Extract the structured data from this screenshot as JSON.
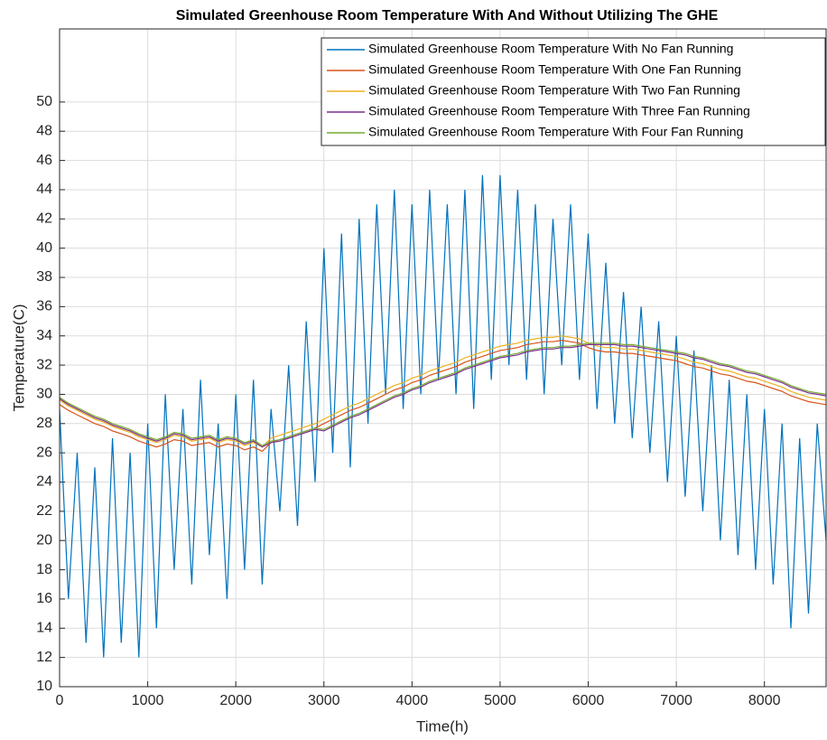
{
  "chart_data": {
    "type": "line",
    "title": "Simulated Greenhouse Room Temperature With And Without Utilizing The GHE",
    "x_label": "Time(h)",
    "y_label": "Temperature(C)",
    "xlim": [
      0,
      8700
    ],
    "ylim": [
      10,
      55
    ],
    "xticks": [
      0,
      1000,
      2000,
      3000,
      4000,
      5000,
      6000,
      7000,
      8000
    ],
    "yticks": [
      10,
      12,
      14,
      16,
      18,
      20,
      22,
      24,
      26,
      28,
      30,
      32,
      34,
      36,
      38,
      40,
      42,
      44,
      46,
      48,
      50
    ],
    "grid": true,
    "legend": "top-right",
    "x": [
      0,
      100,
      200,
      300,
      400,
      500,
      600,
      700,
      800,
      900,
      1000,
      1100,
      1200,
      1300,
      1400,
      1500,
      1600,
      1700,
      1800,
      1900,
      2000,
      2100,
      2200,
      2300,
      2400,
      2500,
      2600,
      2700,
      2800,
      2900,
      3000,
      3100,
      3200,
      3300,
      3400,
      3500,
      3600,
      3700,
      3800,
      3900,
      4000,
      4100,
      4200,
      4300,
      4400,
      4500,
      4600,
      4700,
      4800,
      4900,
      5000,
      5100,
      5200,
      5300,
      5400,
      5500,
      5600,
      5700,
      5800,
      5900,
      6000,
      6100,
      6200,
      6300,
      6400,
      6500,
      6600,
      6700,
      6800,
      6900,
      7000,
      7100,
      7200,
      7300,
      7400,
      7500,
      7600,
      7700,
      7800,
      7900,
      8000,
      8100,
      8200,
      8300,
      8400,
      8500,
      8600,
      8700
    ],
    "series": [
      {
        "name": "Simulated Greenhouse Room Temperature With No Fan Running",
        "color": "#0072BD",
        "values": [
          29,
          16,
          26,
          13,
          25,
          12,
          27,
          13,
          26,
          12,
          28,
          14,
          30,
          18,
          29,
          17,
          31,
          19,
          28,
          16,
          30,
          18,
          31,
          17,
          29,
          22,
          32,
          21,
          35,
          24,
          40,
          26,
          41,
          25,
          42,
          28,
          43,
          30,
          44,
          29,
          43,
          30,
          44,
          31,
          43,
          30,
          44,
          29,
          45,
          31,
          45,
          32,
          44,
          31,
          43,
          30,
          42,
          32,
          43,
          31,
          41,
          29,
          39,
          28,
          37,
          27,
          36,
          26,
          35,
          24,
          34,
          23,
          33,
          22,
          32,
          20,
          31,
          19,
          30,
          18,
          29,
          17,
          28,
          14,
          27,
          15,
          28,
          20
        ]
      },
      {
        "name": "Simulated Greenhouse Room Temperature With One Fan Running",
        "color": "#D95319",
        "values": [
          29.3,
          28.9,
          28.6,
          28.3,
          28,
          27.8,
          27.5,
          27.3,
          27.1,
          26.8,
          26.6,
          26.4,
          26.6,
          26.9,
          26.8,
          26.5,
          26.6,
          26.7,
          26.4,
          26.6,
          26.5,
          26.2,
          26.4,
          26.1,
          26.7,
          26.9,
          27.1,
          27.3,
          27.5,
          27.7,
          28,
          28.3,
          28.6,
          28.9,
          29.1,
          29.4,
          29.7,
          30,
          30.3,
          30.5,
          30.8,
          31,
          31.3,
          31.5,
          31.7,
          31.9,
          32.2,
          32.4,
          32.6,
          32.8,
          33,
          33.1,
          33.2,
          33.4,
          33.5,
          33.6,
          33.6,
          33.7,
          33.6,
          33.5,
          33.2,
          33,
          32.9,
          32.9,
          32.8,
          32.8,
          32.7,
          32.6,
          32.5,
          32.4,
          32.3,
          32.1,
          31.9,
          31.8,
          31.6,
          31.4,
          31.3,
          31.1,
          30.9,
          30.8,
          30.6,
          30.4,
          30.2,
          29.9,
          29.7,
          29.5,
          29.4,
          29.3
        ]
      },
      {
        "name": "Simulated Greenhouse Room Temperature With Two Fan Running",
        "color": "#EDB120",
        "values": [
          29.6,
          29.2,
          28.9,
          28.6,
          28.3,
          28.1,
          27.8,
          27.6,
          27.4,
          27.1,
          26.9,
          26.7,
          26.9,
          27.2,
          27.1,
          26.8,
          26.9,
          27,
          26.7,
          26.9,
          26.8,
          26.5,
          26.7,
          26.4,
          27,
          27.2,
          27.4,
          27.6,
          27.8,
          28,
          28.3,
          28.6,
          28.9,
          29.2,
          29.4,
          29.7,
          30,
          30.3,
          30.6,
          30.8,
          31.1,
          31.3,
          31.6,
          31.8,
          32,
          32.2,
          32.5,
          32.7,
          32.9,
          33.1,
          33.3,
          33.4,
          33.5,
          33.7,
          33.8,
          33.9,
          33.9,
          34,
          33.9,
          33.8,
          33.5,
          33.3,
          33.2,
          33.2,
          33.1,
          33.1,
          33,
          32.9,
          32.8,
          32.7,
          32.6,
          32.4,
          32.2,
          32.1,
          31.9,
          31.7,
          31.6,
          31.4,
          31.2,
          31.1,
          30.9,
          30.7,
          30.5,
          30.2,
          30,
          29.8,
          29.7,
          29.6
        ]
      },
      {
        "name": "Simulated Greenhouse Room Temperature With Three Fan Running",
        "color": "#7E2F8E",
        "values": [
          29.7,
          29.3,
          29,
          28.7,
          28.4,
          28.2,
          27.9,
          27.7,
          27.5,
          27.2,
          27,
          26.8,
          27,
          27.3,
          27.2,
          26.9,
          27,
          27.1,
          26.8,
          27,
          26.9,
          26.6,
          26.8,
          26.4,
          26.7,
          26.8,
          27,
          27.2,
          27.4,
          27.6,
          27.5,
          27.8,
          28.1,
          28.4,
          28.6,
          28.9,
          29.2,
          29.5,
          29.8,
          30,
          30.3,
          30.5,
          30.8,
          31,
          31.2,
          31.4,
          31.7,
          31.9,
          32.1,
          32.3,
          32.5,
          32.6,
          32.7,
          32.9,
          33,
          33.1,
          33.1,
          33.2,
          33.2,
          33.3,
          33.4,
          33.4,
          33.4,
          33.4,
          33.3,
          33.3,
          33.2,
          33.1,
          33,
          32.9,
          32.8,
          32.7,
          32.5,
          32.4,
          32.2,
          32,
          31.9,
          31.7,
          31.5,
          31.4,
          31.2,
          31,
          30.8,
          30.5,
          30.3,
          30.1,
          30,
          29.9
        ]
      },
      {
        "name": "Simulated Greenhouse Room Temperature With Four Fan Running",
        "color": "#77AC30",
        "values": [
          29.8,
          29.4,
          29.1,
          28.8,
          28.5,
          28.3,
          28,
          27.8,
          27.6,
          27.3,
          27.1,
          26.9,
          27.1,
          27.4,
          27.3,
          27,
          27.1,
          27.2,
          26.9,
          27.1,
          27,
          26.7,
          26.9,
          26.5,
          26.8,
          26.9,
          27.1,
          27.3,
          27.5,
          27.7,
          27.6,
          27.9,
          28.2,
          28.5,
          28.7,
          29,
          29.3,
          29.6,
          29.9,
          30.1,
          30.4,
          30.6,
          30.9,
          31.1,
          31.3,
          31.5,
          31.8,
          32,
          32.2,
          32.4,
          32.6,
          32.7,
          32.8,
          33,
          33.1,
          33.2,
          33.2,
          33.3,
          33.3,
          33.4,
          33.5,
          33.5,
          33.5,
          33.5,
          33.4,
          33.4,
          33.3,
          33.2,
          33.1,
          33,
          32.9,
          32.8,
          32.6,
          32.5,
          32.3,
          32.1,
          32,
          31.8,
          31.6,
          31.5,
          31.3,
          31.1,
          30.9,
          30.6,
          30.4,
          30.2,
          30.1,
          30
        ]
      }
    ]
  }
}
